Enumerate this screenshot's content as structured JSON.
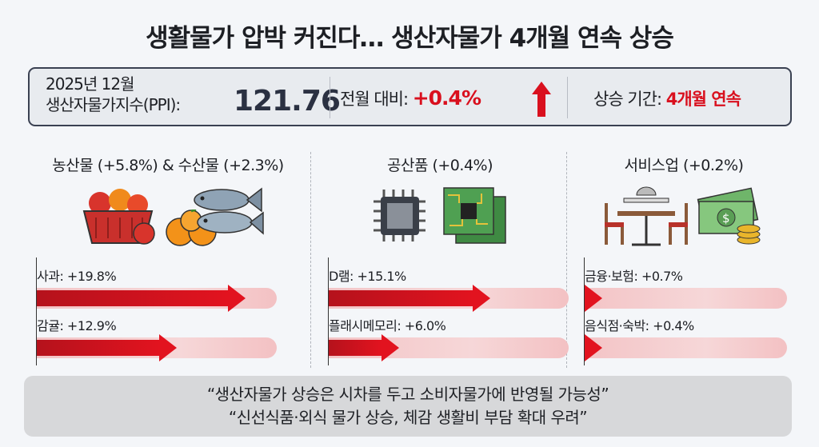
{
  "title": "생활물가 압박 커진다… 생산자물가 4개월 연속 상승",
  "summary": {
    "period": "2025년 12월",
    "ppi_label": "생산자물가지수(PPI):",
    "ppi_value": "121.76",
    "mom_label": "전월 대비:",
    "mom_value": "+0.4%",
    "streak_label": "상승 기간:",
    "streak_value": "4개월 연속",
    "accent": "#d9101e"
  },
  "categories": [
    {
      "heading": "농산물 (+5.8%) & 수산물 (+2.3%)",
      "icons": [
        "fruit-basket-icon",
        "oranges-icon",
        "fish-icon"
      ],
      "items": [
        {
          "label": "사과: +19.8%",
          "value": 19.8
        },
        {
          "label": "감귤: +12.9%",
          "value": 12.9
        }
      ]
    },
    {
      "heading": "공산품 (+0.4%)",
      "icons": [
        "chip-icon",
        "circuit-board-icon"
      ],
      "items": [
        {
          "label": "D램: +15.1%",
          "value": 15.1
        },
        {
          "label": "플래시메모리: +6.0%",
          "value": 6.0
        }
      ]
    },
    {
      "heading": "서비스업 (+0.2%)",
      "icons": [
        "restaurant-table-icon",
        "money-icon"
      ],
      "items": [
        {
          "label": "금융·보험: +0.7%",
          "value": 0.7
        },
        {
          "label": "음식점·숙박: +0.4%",
          "value": 0.4
        }
      ]
    }
  ],
  "footer": {
    "line1": "“생산자물가 상승은 시차를 두고 소비자물가에 반영될 가능성”",
    "line2": "“신선식품·외식 물가 상승, 체감 생활비 부담 확대 우려”"
  }
}
